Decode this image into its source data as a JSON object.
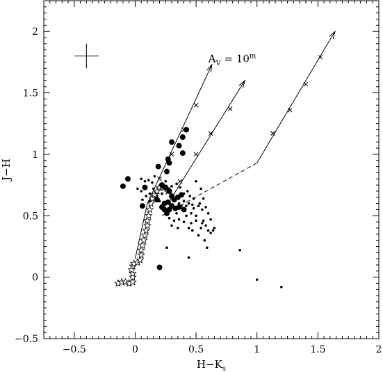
{
  "chart_data": {
    "type": "scatter",
    "xlabel_main": "H−K",
    "xlabel_sub": "s",
    "ylabel": "J−H",
    "xlim": [
      -0.75,
      2.0
    ],
    "ylim": [
      -0.5,
      2.25
    ],
    "x_ticks": [
      -0.5,
      0,
      0.5,
      1,
      1.5,
      2
    ],
    "x_tick_labels": [
      "−0.5",
      "0",
      "0.5",
      "1",
      "1.5",
      "2"
    ],
    "y_ticks": [
      -0.5,
      0,
      0.5,
      1,
      1.5,
      2
    ],
    "y_tick_labels": [
      "−0.5",
      "0",
      "0.5",
      "1",
      "1.5",
      "2"
    ],
    "annotation": {
      "prefix": "A",
      "sub": "V",
      "eq": " = 10",
      "sup": "m",
      "x": 0.6,
      "y": 1.75
    },
    "error_bar": {
      "x": -0.4,
      "y": 1.8,
      "dx": 0.1,
      "dy": 0.1
    },
    "reddening_vectors": [
      {
        "start": [
          0.1,
          0.6
        ],
        "end": [
          0.63,
          1.73
        ],
        "ticks": [
          [
            0.2,
            0.8
          ],
          [
            0.3,
            1.0
          ],
          [
            0.4,
            1.2
          ],
          [
            0.5,
            1.4
          ]
        ]
      },
      {
        "start": [
          0.27,
          0.6
        ],
        "end": [
          0.9,
          1.6
        ],
        "ticks": [
          [
            0.37,
            0.78
          ],
          [
            0.5,
            1.0
          ],
          [
            0.62,
            1.17
          ],
          [
            0.78,
            1.37
          ]
        ]
      },
      {
        "start": [
          1.0,
          0.93
        ],
        "end": [
          1.64,
          2.0
        ],
        "ticks": [
          [
            1.13,
            1.17
          ],
          [
            1.27,
            1.36
          ],
          [
            1.4,
            1.57
          ],
          [
            1.52,
            1.79
          ]
        ]
      }
    ],
    "locus_dashed": [
      [
        0.22,
        0.5
      ],
      [
        1.0,
        0.93
      ]
    ],
    "ms_solid_line": [
      [
        0.0,
        0.15
      ],
      [
        0.1,
        0.6
      ]
    ],
    "star_track": [
      [
        -0.14,
        -0.05
      ],
      [
        -0.11,
        -0.04
      ],
      [
        -0.08,
        -0.04
      ],
      [
        -0.05,
        -0.05
      ],
      [
        -0.02,
        -0.04
      ],
      [
        -0.02,
        0.0
      ],
      [
        -0.02,
        0.03
      ],
      [
        -0.03,
        0.06
      ],
      [
        -0.02,
        0.09
      ],
      [
        -0.01,
        0.11
      ],
      [
        0.02,
        0.12
      ],
      [
        0.04,
        0.14
      ],
      [
        0.05,
        0.18
      ],
      [
        0.05,
        0.22
      ],
      [
        0.06,
        0.26
      ],
      [
        0.07,
        0.3
      ],
      [
        0.08,
        0.34
      ],
      [
        0.09,
        0.38
      ],
      [
        0.1,
        0.42
      ],
      [
        0.1,
        0.46
      ],
      [
        0.11,
        0.5
      ],
      [
        0.12,
        0.55
      ],
      [
        0.13,
        0.6
      ],
      [
        0.14,
        0.64
      ],
      [
        0.16,
        0.67
      ],
      [
        0.18,
        0.7
      ],
      [
        0.2,
        0.73
      ],
      [
        0.22,
        0.74
      ],
      [
        0.24,
        0.73
      ],
      [
        0.26,
        0.72
      ],
      [
        0.27,
        0.7
      ]
    ],
    "large_points": [
      [
        0.3,
        1.1
      ],
      [
        0.36,
        1.07
      ],
      [
        0.39,
        1.14
      ],
      [
        0.42,
        1.2
      ],
      [
        0.39,
        1.01
      ],
      [
        0.27,
        0.96
      ],
      [
        0.28,
        0.93
      ],
      [
        0.26,
        0.86
      ],
      [
        0.19,
        0.9
      ],
      [
        0.22,
        0.75
      ],
      [
        0.25,
        0.73
      ],
      [
        0.28,
        0.7
      ],
      [
        0.3,
        0.66
      ],
      [
        0.32,
        0.63
      ],
      [
        0.35,
        0.65
      ],
      [
        0.38,
        0.67
      ],
      [
        0.27,
        0.61
      ],
      [
        0.3,
        0.58
      ],
      [
        0.33,
        0.56
      ],
      [
        0.28,
        0.55
      ],
      [
        0.26,
        0.52
      ],
      [
        0.24,
        0.6
      ],
      [
        0.24,
        0.55
      ],
      [
        0.22,
        0.57
      ],
      [
        0.18,
        0.63
      ],
      [
        -0.06,
        0.8
      ],
      [
        -0.1,
        0.74
      ],
      [
        0.08,
        0.73
      ],
      [
        0.06,
        0.58
      ],
      [
        0.36,
        0.57
      ],
      [
        0.4,
        0.55
      ],
      [
        0.2,
        0.08
      ]
    ],
    "small_points": [
      [
        0.05,
        0.8
      ],
      [
        0.08,
        0.78
      ],
      [
        0.11,
        0.79
      ],
      [
        0.14,
        0.77
      ],
      [
        0.02,
        0.72
      ],
      [
        0.05,
        0.7
      ],
      [
        0.09,
        0.66
      ],
      [
        0.12,
        0.68
      ],
      [
        0.15,
        0.72
      ],
      [
        0.18,
        0.66
      ],
      [
        0.2,
        0.62
      ],
      [
        0.22,
        0.68
      ],
      [
        0.3,
        0.74
      ],
      [
        0.34,
        0.76
      ],
      [
        0.37,
        0.73
      ],
      [
        0.4,
        0.68
      ],
      [
        0.43,
        0.7
      ],
      [
        0.45,
        0.66
      ],
      [
        0.48,
        0.64
      ],
      [
        0.5,
        0.78
      ],
      [
        0.54,
        0.72
      ],
      [
        0.56,
        0.64
      ],
      [
        0.52,
        0.58
      ],
      [
        0.55,
        0.55
      ],
      [
        0.58,
        0.57
      ],
      [
        0.6,
        0.52
      ],
      [
        0.62,
        0.47
      ],
      [
        0.65,
        0.4
      ],
      [
        0.6,
        0.38
      ],
      [
        0.55,
        0.44
      ],
      [
        0.5,
        0.46
      ],
      [
        0.46,
        0.52
      ],
      [
        0.44,
        0.6
      ],
      [
        0.42,
        0.5
      ],
      [
        0.4,
        0.45
      ],
      [
        0.36,
        0.47
      ],
      [
        0.34,
        0.52
      ],
      [
        0.32,
        0.46
      ],
      [
        0.3,
        0.42
      ],
      [
        0.28,
        0.48
      ],
      [
        0.44,
        0.4
      ],
      [
        0.47,
        0.38
      ],
      [
        0.52,
        0.34
      ],
      [
        0.57,
        0.3
      ],
      [
        0.48,
        0.56
      ],
      [
        0.42,
        0.58
      ],
      [
        0.4,
        0.62
      ],
      [
        0.36,
        0.6
      ],
      [
        0.25,
        0.78
      ],
      [
        0.16,
        0.82
      ],
      [
        0.64,
        0.38
      ],
      [
        0.58,
        0.42
      ],
      [
        0.26,
        0.24
      ],
      [
        0.44,
        0.16
      ],
      [
        0.59,
        0.24
      ],
      [
        0.86,
        0.22
      ],
      [
        1.0,
        -0.02
      ],
      [
        1.2,
        -0.08
      ],
      [
        0.32,
        0.62
      ],
      [
        0.47,
        0.59
      ],
      [
        0.53,
        0.6
      ],
      [
        0.38,
        0.58
      ],
      [
        0.62,
        0.36
      ],
      [
        0.12,
        0.62
      ],
      [
        0.06,
        0.63
      ],
      [
        0.5,
        0.5
      ],
      [
        0.46,
        0.44
      ],
      [
        0.54,
        0.4
      ],
      [
        0.56,
        0.46
      ],
      [
        0.35,
        0.4
      ]
    ]
  }
}
